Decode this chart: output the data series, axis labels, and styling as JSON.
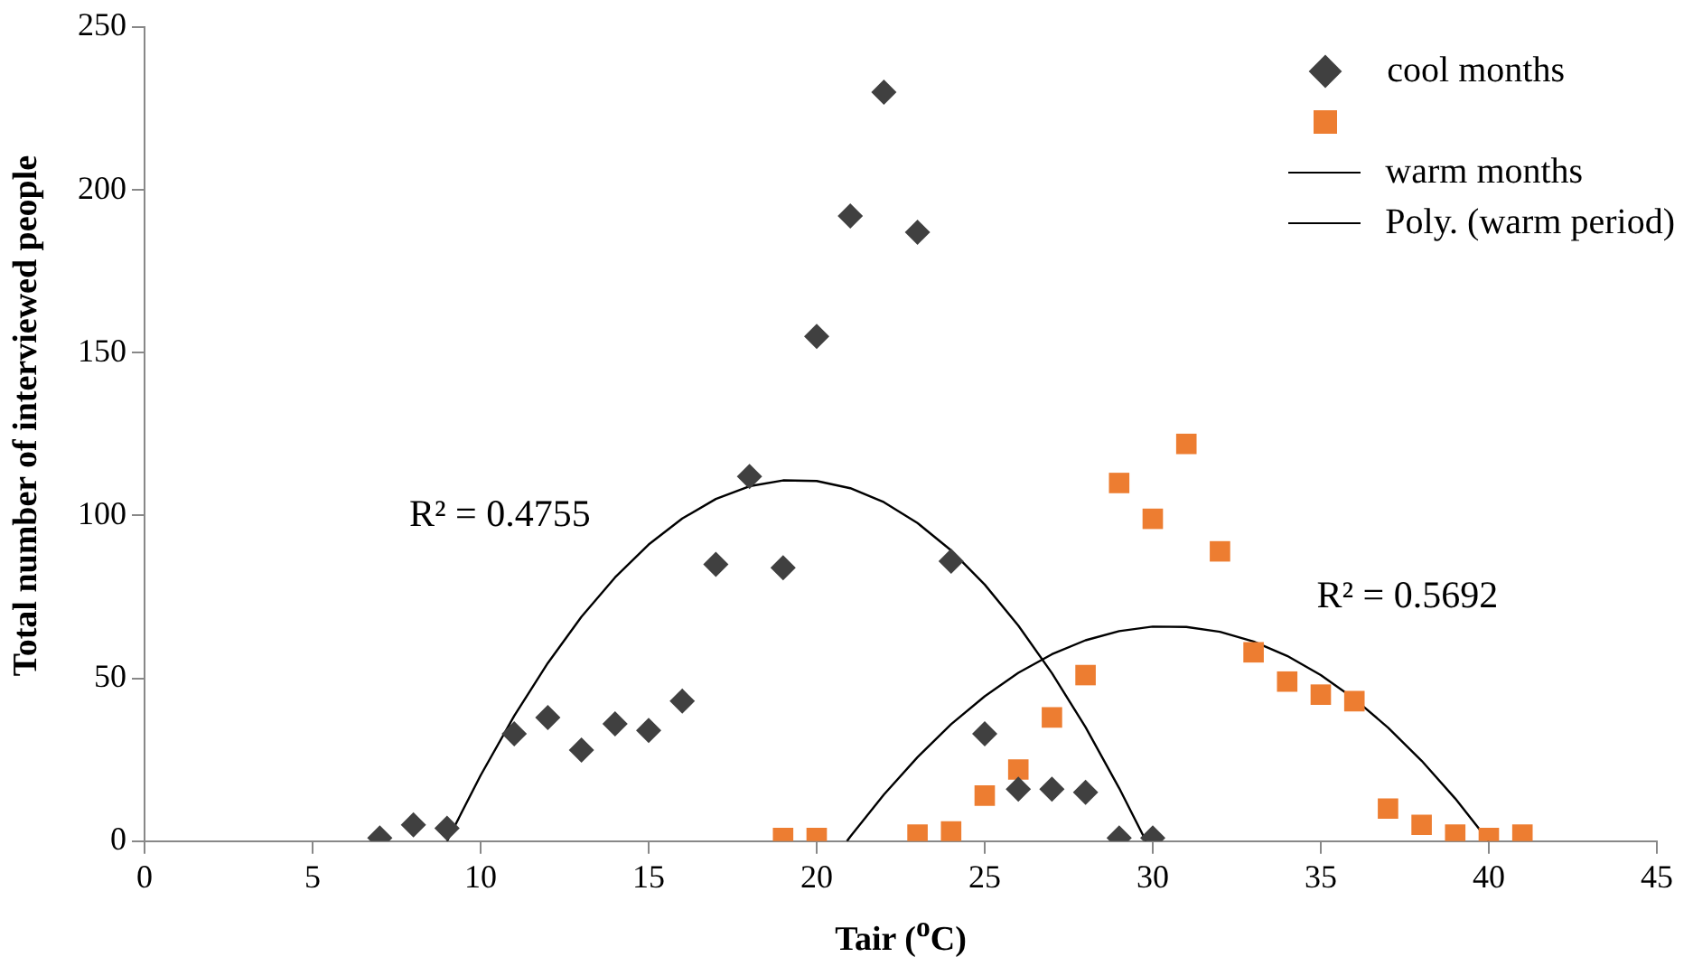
{
  "chart_data": {
    "type": "scatter",
    "xlabel": "Tair ($^{o}$C)",
    "ylabel": "Total number of interviewed people",
    "xlim": [
      0,
      45
    ],
    "xticks": [
      0,
      5,
      10,
      15,
      20,
      25,
      30,
      35,
      40,
      45
    ],
    "ylim": [
      0,
      250
    ],
    "yticks": [
      0,
      50,
      100,
      150,
      200,
      250
    ],
    "grid": false,
    "legend": "top right",
    "series": [
      {
        "name": "cool months",
        "marker": "diamond",
        "color": "#404040",
        "x": [
          7,
          8,
          9,
          11,
          12,
          13,
          14,
          15,
          16,
          17,
          18,
          19,
          20,
          21,
          22,
          23,
          24,
          25,
          26,
          27,
          28,
          29,
          30
        ],
        "values": [
          1,
          5,
          4,
          33,
          38,
          28,
          36,
          34,
          43,
          85,
          112,
          84,
          155,
          192,
          230,
          187,
          86,
          33,
          16,
          16,
          15,
          1,
          1
        ]
      },
      {
        "marker": "square",
        "color": "#ed7d31",
        "x": [
          19,
          20,
          23,
          24,
          25,
          26,
          27,
          28,
          29,
          30,
          31,
          32,
          33,
          34,
          35,
          36,
          37,
          38,
          39,
          40,
          41
        ],
        "values": [
          1,
          1,
          2,
          3,
          14,
          22,
          38,
          51,
          110,
          99,
          122,
          89,
          58,
          49,
          45,
          43,
          10,
          5,
          2,
          1,
          2
        ]
      },
      {
        "name": "warm months",
        "type": "line",
        "marker": "none",
        "color": "#000000",
        "x": [
          9,
          10,
          11,
          12,
          13,
          14,
          15,
          16,
          17,
          18,
          19,
          20,
          21,
          22,
          23,
          24,
          25,
          26,
          27,
          28,
          29,
          29.8
        ],
        "values": [
          0,
          20.2,
          38.5,
          54.7,
          68.9,
          81,
          91.1,
          99.1,
          105.1,
          109,
          110.8,
          110.6,
          108.4,
          104.1,
          97.7,
          89.3,
          78.8,
          66.2,
          51.6,
          35,
          16.3,
          0
        ]
      },
      {
        "name": "Poly. (warm period)",
        "type": "line",
        "marker": "none",
        "color": "#000000",
        "x": [
          20.9,
          21,
          22,
          23,
          24,
          25,
          26,
          27,
          28,
          29,
          30,
          31,
          32,
          33,
          34,
          35,
          36,
          37,
          38,
          39,
          40
        ],
        "values": [
          0,
          1.4,
          14.3,
          25.8,
          35.9,
          44.5,
          51.7,
          57.4,
          61.7,
          64.5,
          65.9,
          65.8,
          64.3,
          61.3,
          56.9,
          51,
          43.7,
          34.9,
          24.7,
          13.1,
          0
        ]
      }
    ],
    "annotations": [
      "R² = 0.4755",
      "R² = 0.5692"
    ]
  }
}
